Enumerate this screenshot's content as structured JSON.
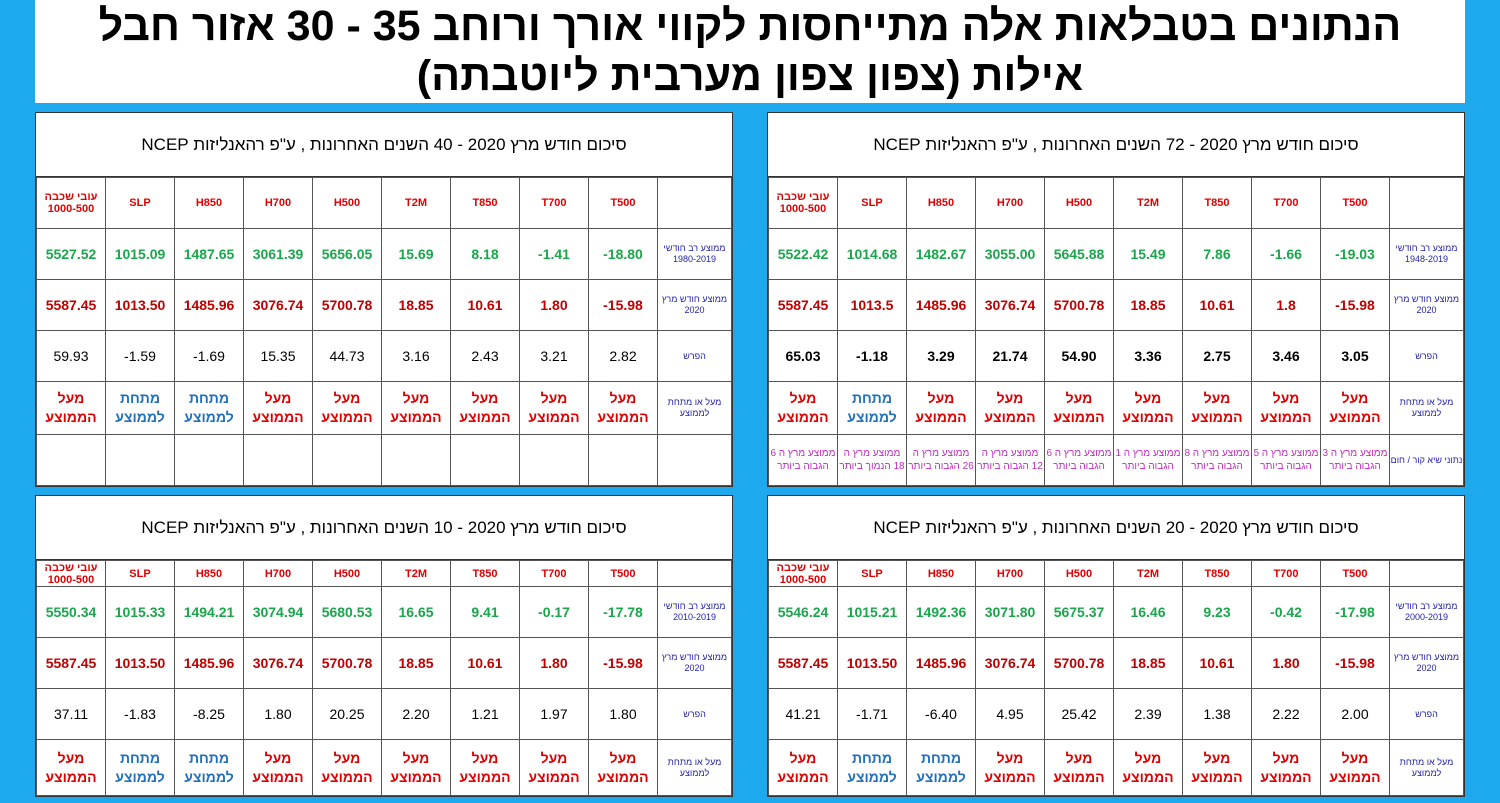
{
  "title": {
    "line1": "הנתונים בטבלאות אלה מתייחסות לקווי אורך ורוחב 35 - 30     אזור חבל",
    "line2": "אילות  (צפון צפון מערבית ליוטבתה)"
  },
  "colors": {
    "background": "#1ea9ee",
    "green": "#1aa64b",
    "red": "#c00000",
    "blue": "#1f6fbf",
    "magenta": "#c02cc0",
    "label_blue": "#1f1fa8"
  },
  "columns": [
    "עובי שכבה 1000-500",
    "SLP",
    "H850",
    "H700",
    "H500",
    "T2M",
    "T850",
    "T700",
    "T500"
  ],
  "row_labels": {
    "avg_2020": "ממוצע חודש מרץ 2020",
    "diff": "הפרש",
    "status": "מעל או מתחת לממוצע",
    "records": "נתוני שיא  קור / חום"
  },
  "status_words": {
    "above": "מעל הממוצע",
    "below": "מתחת לממוצע"
  },
  "panels": [
    {
      "id": "p72",
      "header": "סיכום חודש מרץ 2020  -  72 השנים האחרונות  , ע\"פ רהאנליזות NCEP",
      "ltm_label": "ממוצע רב חודשי 1948-2019",
      "ltm": [
        "5522.42",
        "1014.68",
        "1482.67",
        "3055.00",
        "5645.88",
        "15.49",
        "7.86",
        "-1.66",
        "-19.03"
      ],
      "current": [
        "5587.45",
        "1013.5",
        "1485.96",
        "3076.74",
        "5700.78",
        "18.85",
        "10.61",
        "1.8",
        "-15.98"
      ],
      "diff": [
        "65.03",
        "-1.18",
        "3.29",
        "21.74",
        "54.90",
        "3.36",
        "2.75",
        "3.46",
        "3.05"
      ],
      "status": [
        "above",
        "below",
        "above",
        "above",
        "above",
        "above",
        "above",
        "above",
        "above"
      ],
      "records": [
        "ממוצע מרץ ה 6 הגבוה ביותר",
        "ממוצע מרץ ה 18 הנמוך ביותר",
        "ממוצע מרץ ה 26 הגבוה ביותר",
        "ממוצע מרץ ה 12 הגבוה ביותר",
        "ממוצע מרץ ה 6 הגבוה ביותר",
        "ממוצע מרץ ה 1 הגבוה ביותר",
        "ממוצע מרץ ה 8 הגבוה ביותר",
        "ממוצע מרץ ה 5 הגבוה ביותר",
        "ממוצע מרץ ה 3 הגבוה ביותר"
      ]
    },
    {
      "id": "p40",
      "header": "סיכום חודש מרץ 2020  -  40 השנים האחרונות  , ע\"פ רהאנליזות NCEP",
      "ltm_label": "ממוצע רב חודשי 1980-2019",
      "ltm": [
        "5527.52",
        "1015.09",
        "1487.65",
        "3061.39",
        "5656.05",
        "15.69",
        "8.18",
        "-1.41",
        "-18.80"
      ],
      "current": [
        "5587.45",
        "1013.50",
        "1485.96",
        "3076.74",
        "5700.78",
        "18.85",
        "10.61",
        "1.80",
        "-15.98"
      ],
      "diff": [
        "59.93",
        "-1.59",
        "-1.69",
        "15.35",
        "44.73",
        "3.16",
        "2.43",
        "3.21",
        "2.82"
      ],
      "status": [
        "above",
        "below",
        "below",
        "above",
        "above",
        "above",
        "above",
        "above",
        "above"
      ]
    },
    {
      "id": "p20",
      "header": "סיכום חודש מרץ 2020  -  20 השנים האחרונות  , ע\"פ רהאנליזות NCEP",
      "ltm_label": "ממוצע רב חודשי 2000-2019",
      "ltm": [
        "5546.24",
        "1015.21",
        "1492.36",
        "3071.80",
        "5675.37",
        "16.46",
        "9.23",
        "-0.42",
        "-17.98"
      ],
      "current": [
        "5587.45",
        "1013.50",
        "1485.96",
        "3076.74",
        "5700.78",
        "18.85",
        "10.61",
        "1.80",
        "-15.98"
      ],
      "diff": [
        "41.21",
        "-1.71",
        "-6.40",
        "4.95",
        "25.42",
        "2.39",
        "1.38",
        "2.22",
        "2.00"
      ],
      "status": [
        "above",
        "below",
        "below",
        "above",
        "above",
        "above",
        "above",
        "above",
        "above"
      ]
    },
    {
      "id": "p10",
      "header": "סיכום חודש מרץ 2020  -  10 השנים האחרונות  , ע\"פ רהאנליזות NCEP",
      "ltm_label": "ממוצע רב חודשי 2010-2019",
      "ltm": [
        "5550.34",
        "1015.33",
        "1494.21",
        "3074.94",
        "5680.53",
        "16.65",
        "9.41",
        "-0.17",
        "-17.78"
      ],
      "current": [
        "5587.45",
        "1013.50",
        "1485.96",
        "3076.74",
        "5700.78",
        "18.85",
        "10.61",
        "1.80",
        "-15.98"
      ],
      "diff": [
        "37.11",
        "-1.83",
        "-8.25",
        "1.80",
        "20.25",
        "2.20",
        "1.21",
        "1.97",
        "1.80"
      ],
      "status": [
        "above",
        "below",
        "below",
        "above",
        "above",
        "above",
        "above",
        "above",
        "above"
      ]
    }
  ]
}
